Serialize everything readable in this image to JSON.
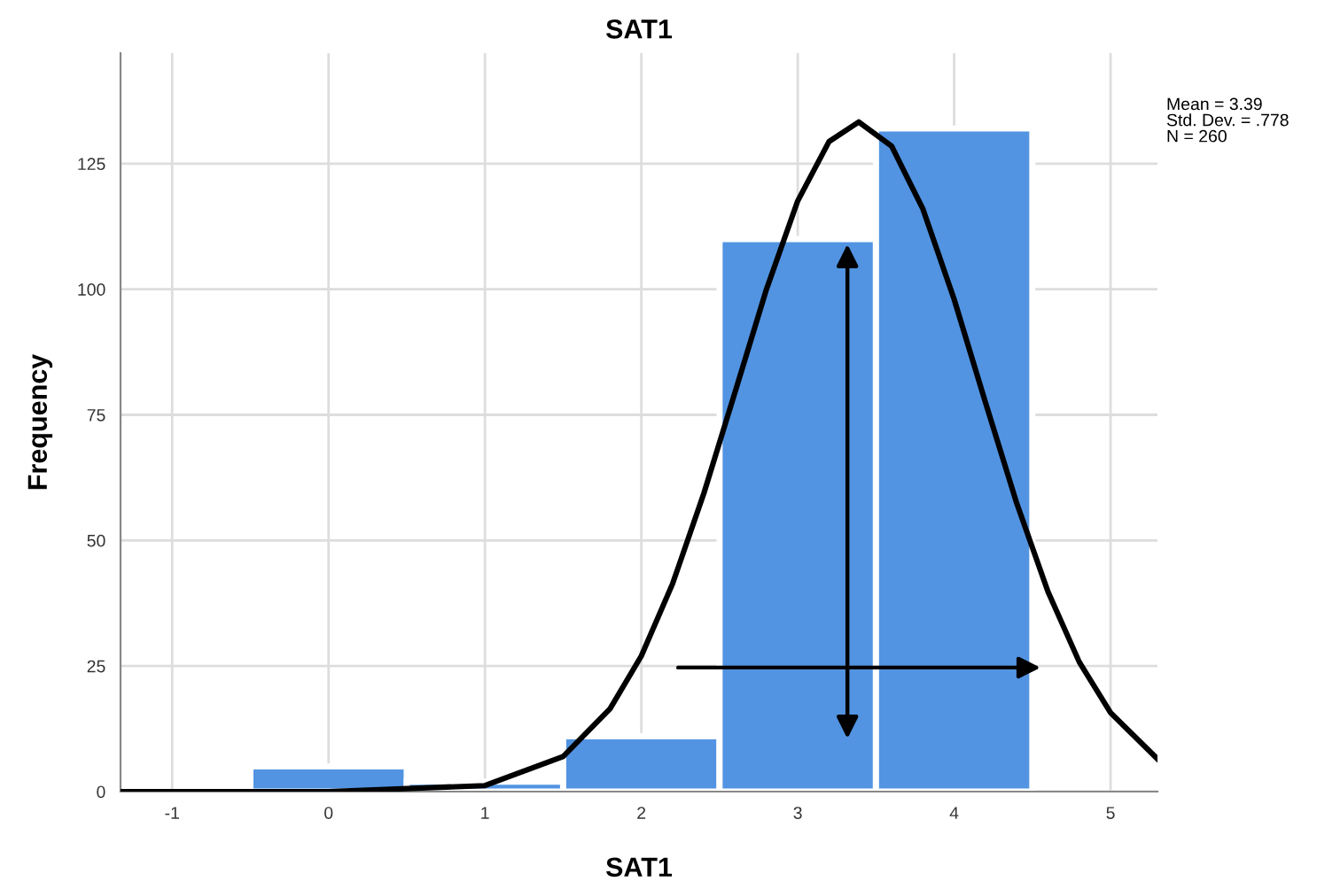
{
  "chart_data": {
    "type": "histogram",
    "title": "SAT1",
    "xlabel": "SAT1",
    "ylabel": "Frequency",
    "series": [
      {
        "type": "histogram",
        "bins": [
          -0.5,
          0.5,
          1.5,
          2.5,
          3.5,
          4.5
        ],
        "values": [
          5,
          2,
          11,
          110,
          132
        ],
        "color": "#5294e2"
      },
      {
        "type": "line",
        "color": "#000000",
        "x": [
          -1.33,
          0,
          1,
          1.5,
          1.8,
          2.0,
          2.2,
          2.4,
          2.6,
          2.8,
          3.0,
          3.2,
          3.39,
          3.6,
          3.8,
          4.0,
          4.2,
          4.4,
          4.6,
          4.8,
          5.0,
          5.3
        ],
        "values": [
          0,
          0,
          1.2,
          7,
          16.5,
          27,
          41.4,
          59.4,
          79.6,
          100,
          117.6,
          129.4,
          133.3,
          128.5,
          116,
          98,
          77.5,
          57.4,
          39.8,
          25.8,
          15.7,
          6.5
        ]
      }
    ],
    "xlim": [
      -1.33,
      5.3
    ],
    "ylim": [
      0,
      147
    ],
    "xticks": [
      -1,
      0,
      1,
      2,
      3,
      4,
      5
    ],
    "yticks": [
      0,
      25,
      50,
      75,
      100,
      125
    ],
    "grid": true,
    "legend": false,
    "marker": "none",
    "line_style": "solid",
    "annotations": [
      "Mean = 3.39\nStd. Dev. = .778\nN = 260"
    ]
  }
}
